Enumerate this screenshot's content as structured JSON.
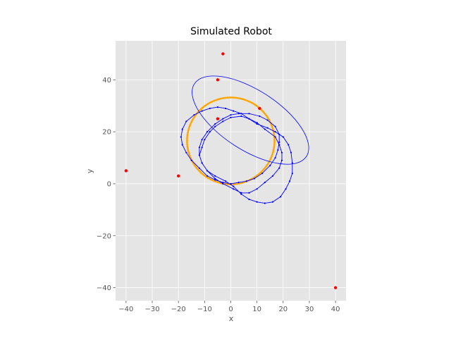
{
  "chart_data": {
    "type": "scatter",
    "title": "Simulated Robot",
    "xlabel": "x",
    "ylabel": "y",
    "xlim": [
      -44,
      44
    ],
    "ylim": [
      -45,
      55
    ],
    "xticks": [
      -40,
      -30,
      -20,
      -10,
      0,
      10,
      20,
      30,
      40
    ],
    "yticks": [
      -40,
      -20,
      0,
      20,
      40
    ],
    "grid": true,
    "colors": {
      "background": "#e5e5e5",
      "grid": "#ffffff",
      "landmarks": "#ff0000",
      "true_path": "#ffa500",
      "estimated_path": "#0000ff",
      "covariance": "#0000ff"
    },
    "series": [
      {
        "kind": "landmarks",
        "points": [
          [
            -3,
            50
          ],
          [
            -5,
            40
          ],
          [
            -40,
            5
          ],
          [
            -20,
            3
          ],
          [
            40,
            -40
          ],
          [
            -5,
            25
          ],
          [
            11,
            29
          ]
        ]
      },
      {
        "kind": "true_path",
        "circle": {
          "center": [
            0,
            16.5
          ],
          "radius": 16.7
        }
      },
      {
        "kind": "estimated_path",
        "points": [
          [
            0,
            0
          ],
          [
            3,
            0.5
          ],
          [
            6,
            1
          ],
          [
            9,
            2
          ],
          [
            12,
            4
          ],
          [
            15,
            7
          ],
          [
            17,
            10
          ],
          [
            18,
            13
          ],
          [
            18.5,
            16
          ],
          [
            18.5,
            19
          ],
          [
            17,
            22
          ],
          [
            14,
            24.5
          ],
          [
            11,
            26
          ],
          [
            7,
            27
          ],
          [
            3,
            27
          ],
          [
            0,
            26.5
          ],
          [
            -3,
            25
          ],
          [
            -6,
            23
          ],
          [
            -9,
            20
          ],
          [
            -11,
            17
          ],
          [
            -12,
            14
          ],
          [
            -12,
            11
          ],
          [
            -11,
            8
          ],
          [
            -9,
            5
          ],
          [
            -6,
            2
          ],
          [
            -3,
            0
          ],
          [
            1,
            -2
          ],
          [
            4,
            -3.5
          ],
          [
            7,
            -3.5
          ],
          [
            10,
            -2
          ],
          [
            13,
            0.5
          ],
          [
            16,
            3
          ],
          [
            18.5,
            6
          ],
          [
            19.5,
            9
          ],
          [
            19.5,
            12
          ],
          [
            18.5,
            15
          ],
          [
            17,
            18
          ],
          [
            13,
            21
          ],
          [
            10,
            23.5
          ],
          [
            7,
            25
          ],
          [
            4,
            26
          ],
          [
            0,
            25.5
          ],
          [
            -3,
            24
          ],
          [
            -6,
            22
          ],
          [
            -8,
            20
          ],
          [
            -10,
            17
          ],
          [
            -11,
            14
          ],
          [
            -12,
            11
          ],
          [
            -11,
            8
          ],
          [
            -9,
            5
          ],
          [
            -6,
            3
          ],
          [
            -2,
            1
          ],
          [
            1,
            -1
          ],
          [
            4,
            -4
          ],
          [
            7,
            -6
          ],
          [
            10,
            -7
          ],
          [
            13,
            -7.5
          ],
          [
            16,
            -7
          ],
          [
            19,
            -5
          ],
          [
            21,
            -2
          ],
          [
            22.5,
            1
          ],
          [
            23.5,
            4
          ],
          [
            23.5,
            8
          ],
          [
            23,
            12
          ],
          [
            22,
            15
          ],
          [
            20,
            18
          ],
          [
            17,
            20
          ],
          [
            14,
            21.5
          ],
          [
            10,
            23
          ],
          [
            7,
            25
          ],
          [
            4,
            27
          ],
          [
            1,
            28
          ],
          [
            -2,
            29
          ],
          [
            -5,
            29.5
          ],
          [
            -8,
            29
          ],
          [
            -11,
            28
          ],
          [
            -14,
            26.5
          ],
          [
            -17,
            24
          ],
          [
            -18.5,
            21
          ],
          [
            -19,
            18
          ],
          [
            -18.5,
            15
          ],
          [
            -17,
            12
          ],
          [
            -15,
            9
          ],
          [
            -12,
            6
          ],
          [
            -9,
            3
          ],
          [
            -6,
            1.5
          ],
          [
            -3,
            0.5
          ],
          [
            0,
            0
          ]
        ]
      },
      {
        "kind": "covariance",
        "ellipse": {
          "center": [
            7.5,
            24.5
          ],
          "rx": 25.5,
          "ry": 11.5,
          "angle_deg": -33
        }
      }
    ]
  }
}
